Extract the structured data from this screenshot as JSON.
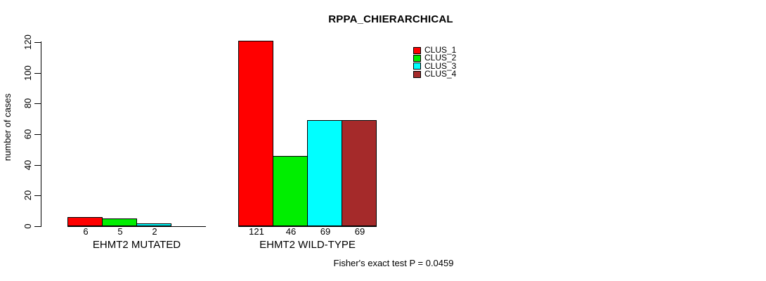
{
  "page": {
    "title": "RPPA_CHIERARCHICAL",
    "ylabel": "number of cases",
    "footer": "Fisher's exact test P = 0.0459"
  },
  "chart_data": {
    "type": "bar",
    "title": "RPPA_CHIERARCHICAL",
    "xlabel": "",
    "ylabel": "number of cases",
    "ylim": [
      0,
      120
    ],
    "yticks": [
      0,
      20,
      40,
      60,
      80,
      100,
      120
    ],
    "grid": false,
    "legend_position": "top-right",
    "background": "#ffffff",
    "axis_color": "#000000",
    "bar_border_color": "#000000",
    "clusters": [
      {
        "name": "CLUS_1",
        "color": "#FF0000"
      },
      {
        "name": "CLUS_2",
        "color": "#00EE00"
      },
      {
        "name": "CLUS_3",
        "color": "#00FFFF"
      },
      {
        "name": "CLUS_4",
        "color": "#A52A2A"
      }
    ],
    "groups": [
      {
        "label": "EHMT2 MUTATED",
        "values": [
          6,
          5,
          2,
          0
        ],
        "value_labels": [
          "6",
          "5",
          "2",
          ""
        ]
      },
      {
        "label": "EHMT2 WILD-TYPE",
        "values": [
          121,
          46,
          69,
          69
        ],
        "value_labels": [
          "121",
          "46",
          "69",
          "69"
        ]
      }
    ],
    "annotation": "Fisher's exact test P = 0.0459"
  }
}
